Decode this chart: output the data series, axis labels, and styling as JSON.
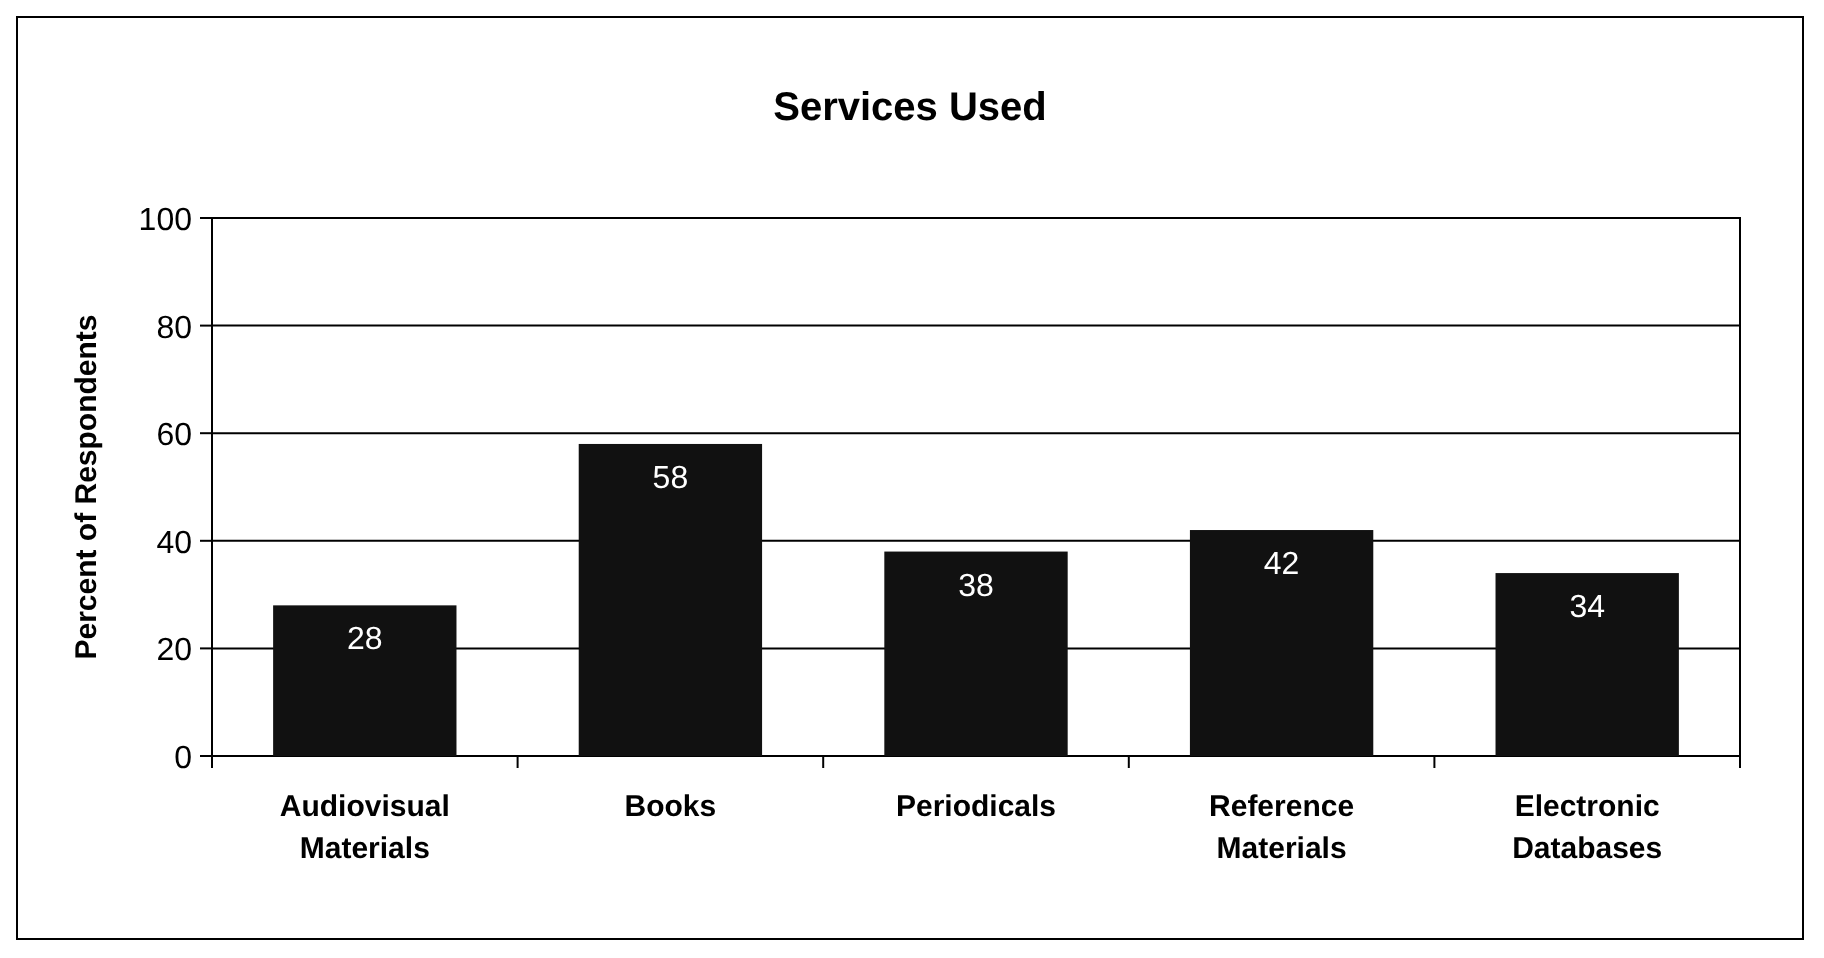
{
  "chart_data": {
    "type": "bar",
    "title": "Services Used",
    "ylabel": "Percent of Respondents",
    "categories": [
      "Audiovisual Materials",
      "Books",
      "Periodicals",
      "Reference Materials",
      "Electronic Databases"
    ],
    "values": [
      28,
      58,
      38,
      42,
      34
    ],
    "color": "#111111",
    "ylim": [
      0,
      100
    ],
    "yticks": [
      0,
      20,
      40,
      60,
      80,
      100
    ],
    "grid": "y",
    "data_labels": true
  }
}
